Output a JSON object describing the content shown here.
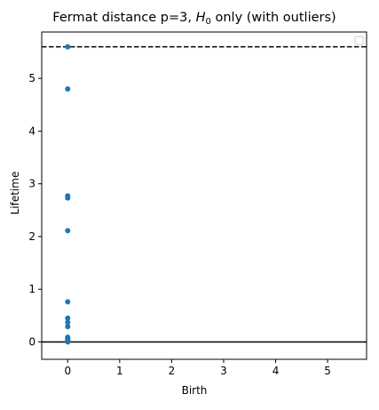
{
  "chart_data": {
    "type": "scatter",
    "title": {
      "prefix": "Fermat distance p=3, ",
      "math_main": "H",
      "math_sub": "0",
      "suffix": " only (with outliers)"
    },
    "xlabel": "Birth",
    "ylabel": "Lifetime",
    "xlim": [
      -0.5,
      5.75
    ],
    "ylim": [
      -0.33,
      5.88
    ],
    "xticks": [
      0,
      1,
      2,
      3,
      4,
      5
    ],
    "yticks": [
      0,
      1,
      2,
      3,
      4,
      5
    ],
    "grid": false,
    "legend": {
      "placement": "top-right",
      "entries": []
    },
    "reference_lines": {
      "infinity_dashed_y": 5.6,
      "zero_solid_y": 0
    },
    "points_color": "#1f77b4",
    "series": [
      {
        "x": [
          0,
          0,
          0,
          0,
          0,
          0,
          0,
          0,
          0,
          0,
          0,
          0,
          0,
          0,
          0,
          0
        ],
        "y": [
          5.6,
          4.8,
          2.77,
          2.73,
          2.11,
          0.76,
          0.45,
          0.37,
          0.29,
          0.09,
          0.06,
          0.04,
          0.02,
          0.01,
          0.005,
          0.0
        ]
      }
    ]
  }
}
